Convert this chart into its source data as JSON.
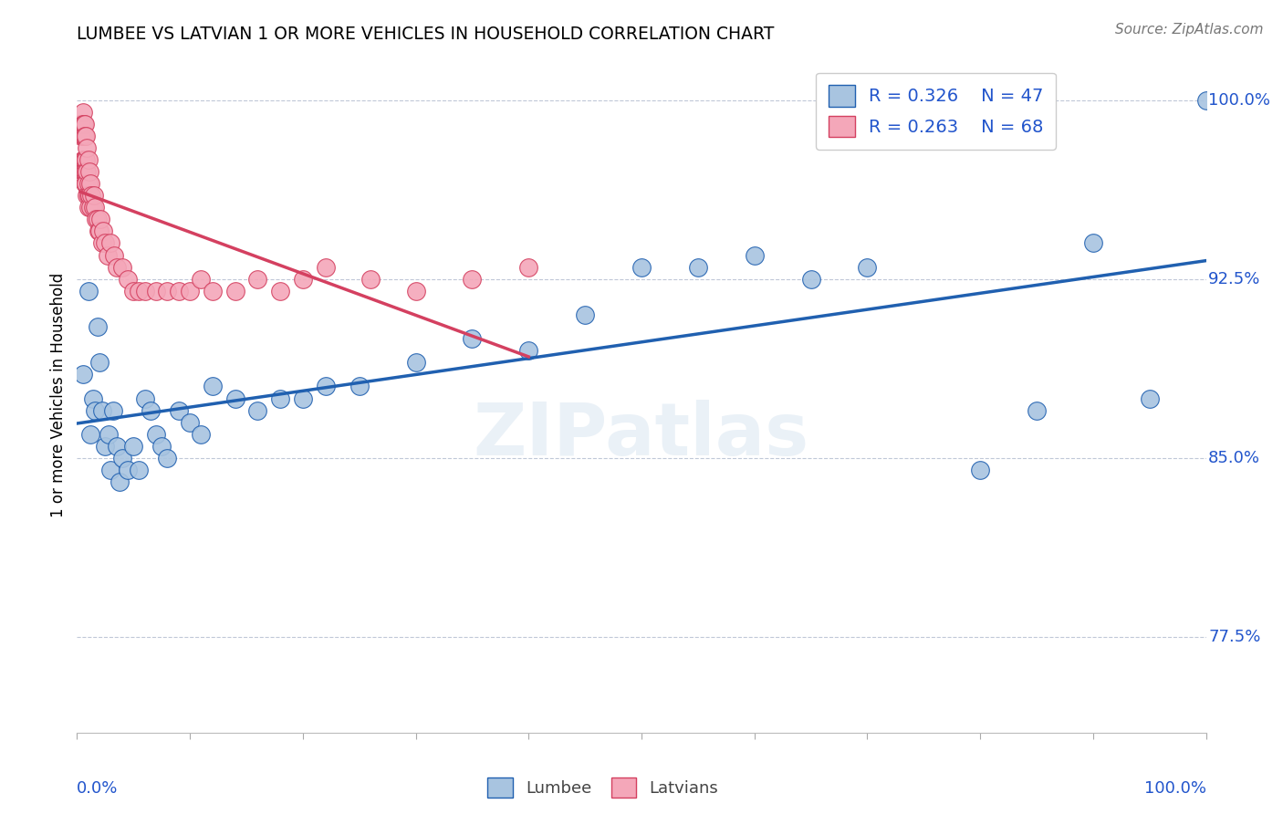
{
  "title": "LUMBEE VS LATVIAN 1 OR MORE VEHICLES IN HOUSEHOLD CORRELATION CHART",
  "source": "Source: ZipAtlas.com",
  "ylabel": "1 or more Vehicles in Household",
  "xlim": [
    0.0,
    1.0
  ],
  "ylim": [
    0.735,
    1.018
  ],
  "yticks": [
    0.775,
    0.85,
    0.925,
    1.0
  ],
  "ytick_labels": [
    "77.5%",
    "85.0%",
    "92.5%",
    "100.0%"
  ],
  "legend_blue_r": "R = 0.326",
  "legend_blue_n": "N = 47",
  "legend_pink_r": "R = 0.263",
  "legend_pink_n": "N = 68",
  "lumbee_color": "#a8c4e0",
  "latvian_color": "#f4a7b9",
  "line_blue": "#2060b0",
  "line_pink": "#d44060",
  "lumbee_x": [
    0.005,
    0.01,
    0.012,
    0.014,
    0.016,
    0.018,
    0.02,
    0.022,
    0.025,
    0.028,
    0.03,
    0.032,
    0.035,
    0.038,
    0.04,
    0.045,
    0.05,
    0.055,
    0.06,
    0.065,
    0.07,
    0.075,
    0.08,
    0.09,
    0.1,
    0.11,
    0.12,
    0.14,
    0.16,
    0.18,
    0.2,
    0.22,
    0.25,
    0.3,
    0.35,
    0.4,
    0.45,
    0.5,
    0.55,
    0.6,
    0.65,
    0.7,
    0.8,
    0.85,
    0.9,
    0.95,
    1.0
  ],
  "lumbee_y": [
    0.885,
    0.92,
    0.86,
    0.875,
    0.87,
    0.905,
    0.89,
    0.87,
    0.855,
    0.86,
    0.845,
    0.87,
    0.855,
    0.84,
    0.85,
    0.845,
    0.855,
    0.845,
    0.875,
    0.87,
    0.86,
    0.855,
    0.85,
    0.87,
    0.865,
    0.86,
    0.88,
    0.875,
    0.87,
    0.875,
    0.875,
    0.88,
    0.88,
    0.89,
    0.9,
    0.895,
    0.91,
    0.93,
    0.93,
    0.935,
    0.925,
    0.93,
    0.845,
    0.87,
    0.94,
    0.875,
    1.0
  ],
  "latvian_x": [
    0.003,
    0.004,
    0.004,
    0.005,
    0.005,
    0.005,
    0.005,
    0.005,
    0.006,
    0.006,
    0.006,
    0.006,
    0.007,
    0.007,
    0.007,
    0.007,
    0.007,
    0.008,
    0.008,
    0.008,
    0.008,
    0.009,
    0.009,
    0.009,
    0.01,
    0.01,
    0.01,
    0.01,
    0.011,
    0.011,
    0.012,
    0.012,
    0.013,
    0.014,
    0.015,
    0.016,
    0.017,
    0.018,
    0.019,
    0.02,
    0.021,
    0.022,
    0.023,
    0.025,
    0.027,
    0.03,
    0.033,
    0.035,
    0.04,
    0.045,
    0.05,
    0.055,
    0.06,
    0.07,
    0.08,
    0.09,
    0.1,
    0.11,
    0.12,
    0.14,
    0.16,
    0.18,
    0.2,
    0.22,
    0.26,
    0.3,
    0.35,
    0.4
  ],
  "latvian_y": [
    0.99,
    0.99,
    0.985,
    0.995,
    0.99,
    0.985,
    0.975,
    0.97,
    0.99,
    0.985,
    0.975,
    0.97,
    0.99,
    0.985,
    0.975,
    0.97,
    0.965,
    0.985,
    0.975,
    0.97,
    0.965,
    0.98,
    0.97,
    0.96,
    0.975,
    0.965,
    0.96,
    0.955,
    0.97,
    0.96,
    0.965,
    0.955,
    0.96,
    0.955,
    0.96,
    0.955,
    0.95,
    0.95,
    0.945,
    0.945,
    0.95,
    0.94,
    0.945,
    0.94,
    0.935,
    0.94,
    0.935,
    0.93,
    0.93,
    0.925,
    0.92,
    0.92,
    0.92,
    0.92,
    0.92,
    0.92,
    0.92,
    0.925,
    0.92,
    0.92,
    0.925,
    0.92,
    0.925,
    0.93,
    0.925,
    0.92,
    0.925,
    0.93
  ]
}
